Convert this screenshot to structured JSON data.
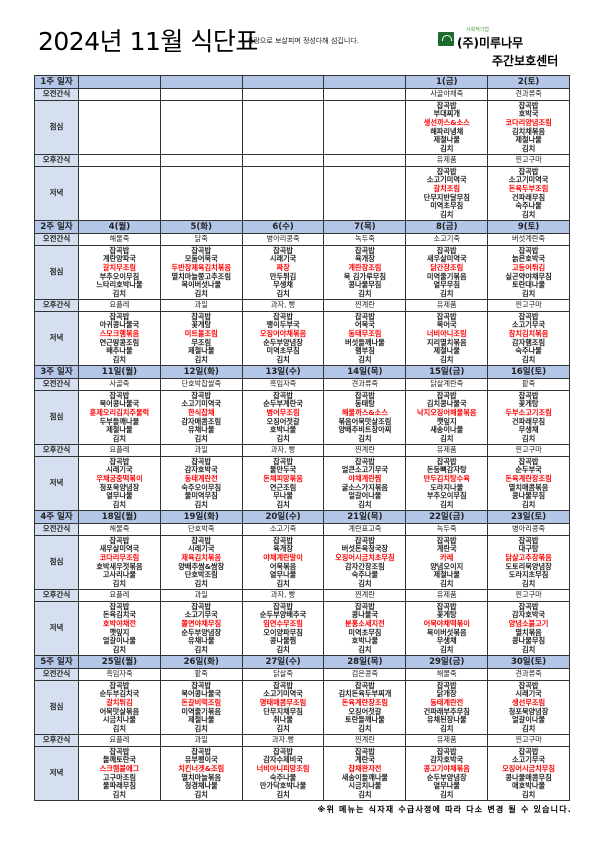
{
  "header": {
    "title": "2024년 11월 식단표",
    "slogan": "사랑으로 보살피며 정성다해 섬깁니다.",
    "logo_caption": "사회적기업",
    "company": "(주)미루나무",
    "center": "주간보호센터"
  },
  "row_labels": {
    "am": "오전간식",
    "lunch": "점심",
    "pm": "오후간식",
    "dinner": "저녁"
  },
  "highlight_color": "#ff0000",
  "highlight_index": 2,
  "weeks": [
    {
      "label": "1주 일자",
      "days": [
        {
          "date": "",
          "am": "",
          "pm": "",
          "lunch": [],
          "dinner": []
        },
        {
          "date": "",
          "am": "",
          "pm": "",
          "lunch": [],
          "dinner": []
        },
        {
          "date": "",
          "am": "",
          "pm": "",
          "lunch": [],
          "dinner": []
        },
        {
          "date": "",
          "am": "",
          "pm": "",
          "lunch": [],
          "dinner": []
        },
        {
          "date": "1(금)",
          "am": "사골야채죽",
          "pm": "유제품",
          "lunch": [
            "잡곡밥",
            "부대찌개",
            "생선까스&소스",
            "해파리냉채",
            "제철나물",
            "김치"
          ],
          "dinner": [
            "잡곡밥",
            "소고기미역국",
            "갈치조림",
            "단무지반달무침",
            "미역초무침",
            "김치"
          ]
        },
        {
          "date": "2(토)",
          "am": "견과류죽",
          "pm": "찐고구마",
          "lunch": [
            "잡곡밥",
            "호박국",
            "코다리양념조림",
            "김치채볶음",
            "제철나물",
            "김치"
          ],
          "dinner": [
            "잡곡밥",
            "소고기미역국",
            "돈육두부조림",
            "건파래무침",
            "숙주나물",
            "김치"
          ]
        }
      ]
    },
    {
      "label": "2주 일자",
      "days": [
        {
          "date": "4(월)",
          "am": "해물죽",
          "pm": "요플레",
          "lunch": [
            "잡곡밥",
            "계란양파국",
            "갈치무조림",
            "부추오이무침",
            "느타리호박나물",
            "김치"
          ],
          "dinner": [
            "잡곡밥",
            "아귀콩나물국",
            "스모크햄볶음",
            "연근땅콩조림",
            "배추나물",
            "김치"
          ]
        },
        {
          "date": "5(화)",
          "am": "닭죽",
          "pm": "과일",
          "lunch": [
            "잡곡밥",
            "모둠어묵국",
            "두반장제육김치볶음",
            "멸치마늘쫑고추조림",
            "목이버섯나물",
            "김치"
          ],
          "dinner": [
            "잡곡밥",
            "꽃게탕",
            "미트볼조림",
            "무조림",
            "제철나물",
            "김치"
          ]
        },
        {
          "date": "6(수)",
          "am": "병아리콩죽",
          "pm": "과자, 빵",
          "lunch": [
            "잡곡밥",
            "시래기국",
            "짜장",
            "만두튀김",
            "무생채",
            "김치"
          ],
          "dinner": [
            "잡곡밥",
            "팽이두부국",
            "오징어야채볶음",
            "순두부양념장",
            "미역초무침",
            "김치"
          ]
        },
        {
          "date": "7(목)",
          "am": "녹두죽",
          "pm": "찐계란",
          "lunch": [
            "잡곡밥",
            "육개장",
            "계란장조림",
            "묵 김가루무침",
            "콩나물무침",
            "김치"
          ],
          "dinner": [
            "잡곡밥",
            "어묵국",
            "동태무조림",
            "버섯들깨나물",
            "햄부침",
            "김치"
          ]
        },
        {
          "date": "8(금)",
          "am": "소고기죽",
          "pm": "유제품",
          "lunch": [
            "잡곡밥",
            "새우살미역국",
            "닭간장조림",
            "미역줄기볶음",
            "열무무침",
            "김치"
          ],
          "dinner": [
            "잡곡밥",
            "북어국",
            "너비아니조림",
            "지리멸치볶음",
            "제철나물",
            "김치"
          ]
        },
        {
          "date": "9(토)",
          "am": "버섯계란죽",
          "pm": "찐고구마",
          "lunch": [
            "잡곡밥",
            "늙은호박국",
            "고등어튀김",
            "실곤약야채무침",
            "토란대나물",
            "김치"
          ],
          "dinner": [
            "잡곡밥",
            "소고기무국",
            "참치김치볶음",
            "감자햄조림",
            "숙주나물",
            "김치"
          ]
        }
      ]
    },
    {
      "label": "3주 일자",
      "days": [
        {
          "date": "11일(월)",
          "am": "사골죽",
          "pm": "요플레",
          "lunch": [
            "잡곡밥",
            "북어콩나물국",
            "훈제오리김치주물럭",
            "두부들깨나물",
            "제철나물",
            "김치"
          ],
          "dinner": [
            "잡곡밥",
            "시래기국",
            "우채궁중떡볶이",
            "청포묵양념장",
            "열무나물",
            "김치"
          ]
        },
        {
          "date": "12일(화)",
          "am": "단호박찹쌀죽",
          "pm": "과일",
          "lunch": [
            "잡곡밥",
            "소고기미역국",
            "한식잡채",
            "감자매콤조림",
            "유채나물",
            "김치"
          ],
          "dinner": [
            "잡곡밥",
            "감자호박국",
            "동태계란전",
            "숙주오이무침",
            "물미역무침",
            "김치"
          ]
        },
        {
          "date": "13일(수)",
          "am": "흑임자죽",
          "pm": "과자, 빵",
          "lunch": [
            "잡곡밥",
            "순두부계란국",
            "병어무조림",
            "오징어젓갈",
            "호박나물",
            "김치"
          ],
          "dinner": [
            "잡곡밥",
            "물만두국",
            "돈채피망볶음",
            "연근조림",
            "무나물",
            "김치"
          ]
        },
        {
          "date": "14일(목)",
          "am": "견과류죽",
          "pm": "찐계란",
          "lunch": [
            "잡곡밥",
            "동태탕",
            "해물까스&소스",
            "볶음어묵맛살조림",
            "양배추비트장아찌",
            "김치"
          ],
          "dinner": [
            "잡곡밥",
            "얼큰소고기무국",
            "야채계란찜",
            "굴소스가지볶음",
            "얼갈이나물",
            "김치"
          ]
        },
        {
          "date": "15일(금)",
          "am": "닭살계란죽",
          "pm": "유제품",
          "lunch": [
            "잡곡밥",
            "김치콩나물국",
            "낙지오징어해물볶음",
            "깻잎지",
            "새송이나물",
            "김치"
          ],
          "dinner": [
            "잡곡밥",
            "돈등뼈감자탕",
            "만두김치탕수육",
            "도라지나물",
            "부추오이무침",
            "김치"
          ]
        },
        {
          "date": "16일(토)",
          "am": "팥죽",
          "pm": "찐고구마",
          "lunch": [
            "잡곡밥",
            "꽃게탕",
            "두부소고기조림",
            "건파래무침",
            "무생채",
            "김치"
          ],
          "dinner": [
            "잡곡밥",
            "순두부국",
            "돈육계란장조림",
            "멸치매콤볶음",
            "콩나물무침",
            "김치"
          ]
        }
      ]
    },
    {
      "label": "4주 일자",
      "days": [
        {
          "date": "18일(월)",
          "am": "해물죽",
          "pm": "요플레",
          "lunch": [
            "잡곡밥",
            "새우살미역국",
            "코다리무조림",
            "호박새우젓볶음",
            "고사리나물",
            "김치"
          ],
          "dinner": [
            "잡곡밥",
            "돈육김치국",
            "호박야채전",
            "깻잎지",
            "얼갈이나물",
            "김치"
          ]
        },
        {
          "date": "19일(화)",
          "am": "단호박죽",
          "pm": "과일",
          "lunch": [
            "잡곡밥",
            "시래기국",
            "제육김치볶음",
            "양배추쌈&쌈장",
            "단호박조림",
            "김치"
          ],
          "dinner": [
            "잡곡밥",
            "소고기무국",
            "쫄면야채무침",
            "순두부양념장",
            "유채나물",
            "김치"
          ]
        },
        {
          "date": "20일(수)",
          "am": "소고기죽",
          "pm": "과자, 빵",
          "lunch": [
            "잡곡밥",
            "육개장",
            "야채계란말이",
            "어묵볶음",
            "열무나물",
            "김치"
          ],
          "dinner": [
            "잡곡밥",
            "순두부양배추국",
            "임연수무조림",
            "오이양파무침",
            "콩나물찜",
            "김치"
          ]
        },
        {
          "date": "21일(목)",
          "am": "계란표고죽",
          "pm": "찐계란",
          "lunch": [
            "잡곡밥",
            "버섯돈육청국장",
            "오징어시금치초무침",
            "감자간장조림",
            "숙주나물",
            "김치"
          ],
          "dinner": [
            "잡곡밥",
            "콩나물국",
            "분홍소세지전",
            "미역초무침",
            "호박나물",
            "김치"
          ]
        },
        {
          "date": "22일(금)",
          "am": "녹두죽",
          "pm": "유제품",
          "lunch": [
            "잡곡밥",
            "계란국",
            "카레",
            "양념오이지",
            "제철나물",
            "김치"
          ],
          "dinner": [
            "잡곡밥",
            "꽃게탕",
            "어묵야채떡볶이",
            "목이버섯볶음",
            "무생채",
            "김치"
          ]
        },
        {
          "date": "23일(토)",
          "am": "병아리콩죽",
          "pm": "찐고구마",
          "lunch": [
            "잡곡밥",
            "대구탕",
            "닭살고추장볶음",
            "도토리묵양념장",
            "도라지초무침",
            "김치"
          ],
          "dinner": [
            "잡곡밥",
            "감자호박국",
            "양념소불고기",
            "멸치볶음",
            "콩나물무침",
            "김치"
          ]
        }
      ]
    },
    {
      "label": "5주 일자",
      "days": [
        {
          "date": "25일(월)",
          "am": "흑임자죽",
          "pm": "요플레",
          "lunch": [
            "잡곡밥",
            "순두부김치국",
            "갈치튀김",
            "어묵맛살볶음",
            "시금치나물",
            "김치"
          ],
          "dinner": [
            "잡곡밥",
            "들깨토란국",
            "스크램블에그",
            "고구마조림",
            "물파래무침",
            "김치"
          ]
        },
        {
          "date": "26일(화)",
          "am": "팥죽",
          "pm": "과일",
          "lunch": [
            "잡곡밥",
            "북어콩나물국",
            "돈갈비떡조림",
            "미역줄기볶음",
            "제철나물",
            "김치"
          ],
          "dinner": [
            "잡곡밥",
            "유부팽이국",
            "치킨너겟&조림",
            "멸치마늘볶음",
            "청경채나물",
            "김치"
          ]
        },
        {
          "date": "27일(수)",
          "am": "닭살죽",
          "pm": "과자.빵",
          "lunch": [
            "잡곡밥",
            "소고기미역국",
            "명태매콤무조림",
            "단무지채무침",
            "취나물",
            "김치"
          ],
          "dinner": [
            "잡곡밥",
            "감자수제비국",
            "너비아니피망조림",
            "숙주나물",
            "만가닥호박나물",
            "김치"
          ]
        },
        {
          "date": "28일(목)",
          "am": "검은콩죽",
          "pm": "찐계란",
          "lunch": [
            "잡곡밥",
            "김치돈육두부찌개",
            "돈육계란장조림",
            "오징어젓갈",
            "토란들깨나물",
            "김치"
          ],
          "dinner": [
            "잡곡밥",
            "계란국",
            "잡채완자전",
            "새송이들깨나물",
            "시금치나물",
            "김치"
          ]
        },
        {
          "date": "29일(금)",
          "am": "해물죽",
          "pm": "유제품",
          "lunch": [
            "잡곡밥",
            "닭개장",
            "동태계란전",
            "건파래부추무침",
            "유채된장나물",
            "김치"
          ],
          "dinner": [
            "잡곡밥",
            "감자호박국",
            "콩고기야채볶음",
            "순두부양념장",
            "열무나물",
            "김치"
          ]
        },
        {
          "date": "30일(토)",
          "am": "견과류죽",
          "pm": "찐고구마",
          "lunch": [
            "잡곡밥",
            "시래기국",
            "생선무조림",
            "청포묵양념장",
            "얼갈이나물",
            "김치"
          ],
          "dinner": [
            "잡곡밥",
            "소고기무국",
            "오징어시금치무침",
            "콩나물매콤무침",
            "애호박나물",
            "김치"
          ]
        }
      ]
    }
  ],
  "footer": "※위 메뉴는 식자재 수급사정에 따라 다소 변경 될 수 있습니다."
}
